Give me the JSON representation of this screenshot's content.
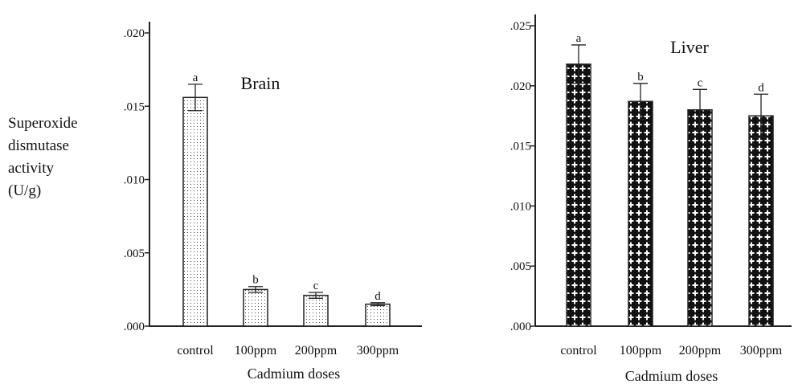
{
  "y_axis_label_lines": [
    "Superoxide",
    "dismutase",
    "activity",
    "(U/g)"
  ],
  "chart_data": [
    {
      "type": "bar",
      "title": "Brain",
      "xlabel": "Cadmium doses",
      "ylabel": "Superoxide dismutase activity (U/g)",
      "categories": [
        "control",
        "100ppm",
        "200ppm",
        "300ppm"
      ],
      "values": [
        0.0156,
        0.0025,
        0.0021,
        0.0015
      ],
      "errors": [
        0.0009,
        0.0002,
        0.0002,
        0.0001
      ],
      "significance_letters": [
        "a",
        "b",
        "c",
        "d"
      ],
      "ylim": [
        0,
        0.02
      ],
      "yticks": [
        ".000",
        ".005",
        ".010",
        ".015",
        ".020"
      ],
      "grid": false,
      "pattern": "dots"
    },
    {
      "type": "bar",
      "title": "Liver",
      "xlabel": "Cadmium doses",
      "ylabel": "Superoxide dismutase activity (U/g)",
      "categories": [
        "control",
        "100ppm",
        "200ppm",
        "300ppm"
      ],
      "values": [
        0.0218,
        0.0187,
        0.018,
        0.0175
      ],
      "errors": [
        0.0016,
        0.0015,
        0.0017,
        0.0018
      ],
      "significance_letters": [
        "a",
        "b",
        "c",
        "d"
      ],
      "ylim": [
        0,
        0.025
      ],
      "yticks": [
        ".000",
        ".005",
        ".010",
        ".015",
        ".020",
        ".025"
      ],
      "grid": false,
      "pattern": "crosses"
    }
  ]
}
